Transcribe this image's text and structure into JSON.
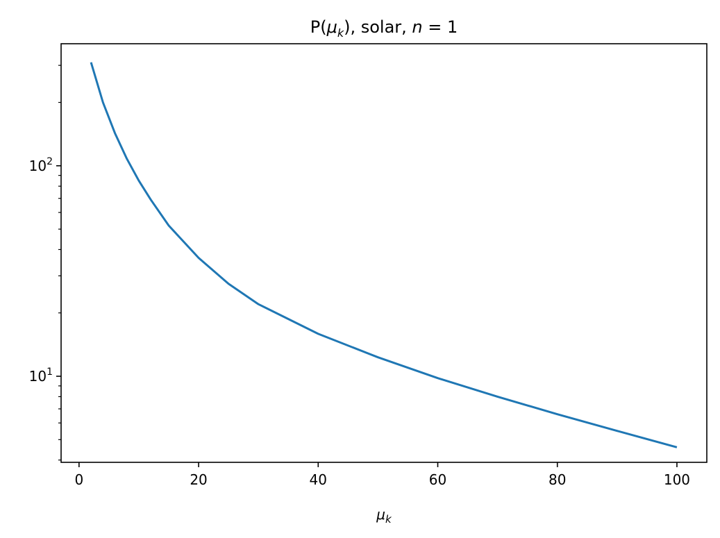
{
  "chart_data": {
    "type": "line",
    "title": "P(μ_k), solar, n = 1",
    "title_parts": {
      "prefix": "P(",
      "mu": "μ",
      "sub": "k",
      "mid": "), solar, ",
      "n": "n",
      "eq": " = 1"
    },
    "xlabel": "μ_k",
    "xlabel_parts": {
      "mu": "μ",
      "sub": "k"
    },
    "ylabel": "",
    "x_scale": "linear",
    "y_scale": "log",
    "xlim": [
      -3,
      105
    ],
    "ylim": [
      3.9,
      380
    ],
    "x_ticks": [
      0,
      20,
      40,
      60,
      80,
      100
    ],
    "x_tick_labels": [
      "0",
      "20",
      "40",
      "60",
      "80",
      "100"
    ],
    "y_major_ticks": [
      10,
      100
    ],
    "y_tick_labels": [
      {
        "base": "10",
        "exp": "1"
      },
      {
        "base": "10",
        "exp": "2"
      }
    ],
    "grid": false,
    "legend": "none",
    "series": [
      {
        "color": "#1f77b4",
        "x": [
          2,
          4,
          6,
          8,
          10,
          12,
          15,
          20,
          25,
          30,
          40,
          50,
          60,
          70,
          80,
          90,
          100
        ],
        "y": [
          310,
          200,
          143,
          108,
          85,
          69,
          52,
          36.5,
          27.5,
          22,
          15.9,
          12.3,
          9.8,
          8.0,
          6.6,
          5.5,
          4.6
        ]
      }
    ]
  }
}
